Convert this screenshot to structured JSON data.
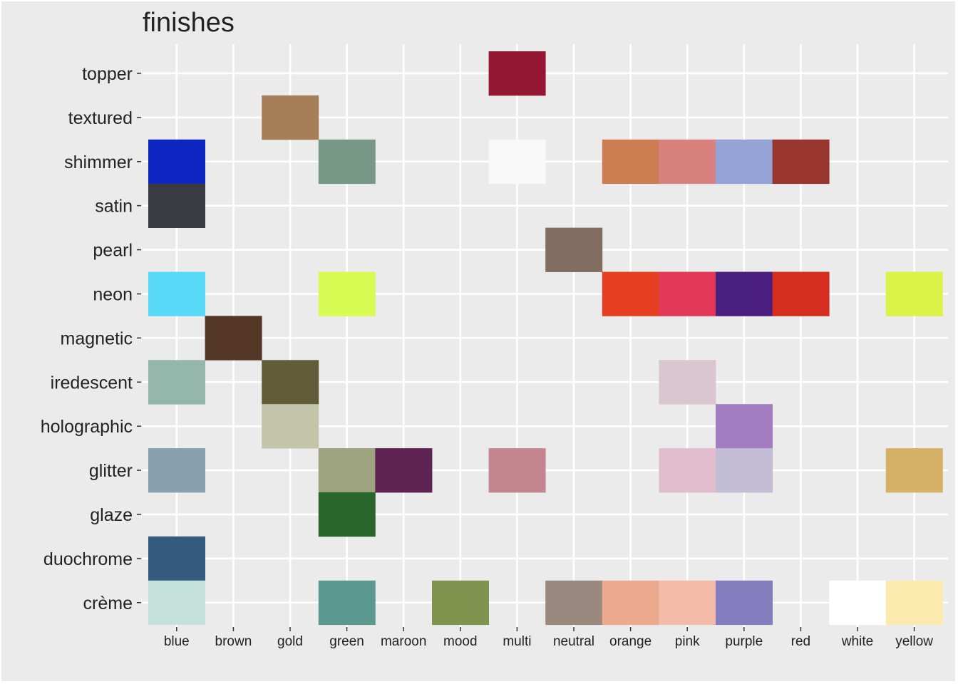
{
  "chart_data": {
    "type": "heatmap",
    "title": "finishes",
    "xlabel": "",
    "ylabel": "",
    "grid": true,
    "legend": "none",
    "x_categories": [
      "blue",
      "brown",
      "gold",
      "green",
      "maroon",
      "mood",
      "multi",
      "neutral",
      "orange",
      "pink",
      "purple",
      "red",
      "white",
      "yellow"
    ],
    "y_categories": [
      "topper",
      "textured",
      "shimmer",
      "satin",
      "pearl",
      "neon",
      "magnetic",
      "iredescent",
      "holographic",
      "glitter",
      "glaze",
      "duochrome",
      "crème"
    ],
    "cells": [
      {
        "x": "multi",
        "y": "topper",
        "color": "#941832"
      },
      {
        "x": "gold",
        "y": "textured",
        "color": "#a67e58"
      },
      {
        "x": "blue",
        "y": "shimmer",
        "color": "#0c25c1"
      },
      {
        "x": "green",
        "y": "shimmer",
        "color": "#779787"
      },
      {
        "x": "multi",
        "y": "shimmer",
        "color": "#f7f8f7"
      },
      {
        "x": "orange",
        "y": "shimmer",
        "color": "#cc7e52"
      },
      {
        "x": "pink",
        "y": "shimmer",
        "color": "#d8817e"
      },
      {
        "x": "purple",
        "y": "shimmer",
        "color": "#95a2d6"
      },
      {
        "x": "red",
        "y": "shimmer",
        "color": "#98352e"
      },
      {
        "x": "blue",
        "y": "satin",
        "color": "#393a42"
      },
      {
        "x": "neutral",
        "y": "pearl",
        "color": "#826d61"
      },
      {
        "x": "blue",
        "y": "neon",
        "color": "#58d9f7"
      },
      {
        "x": "green",
        "y": "neon",
        "color": "#d8fb54"
      },
      {
        "x": "orange",
        "y": "neon",
        "color": "#e53e21"
      },
      {
        "x": "pink",
        "y": "neon",
        "color": "#e33958"
      },
      {
        "x": "purple",
        "y": "neon",
        "color": "#4b1f7f"
      },
      {
        "x": "red",
        "y": "neon",
        "color": "#d52d20"
      },
      {
        "x": "yellow",
        "y": "neon",
        "color": "#dbf346"
      },
      {
        "x": "brown",
        "y": "magnetic",
        "color": "#553728"
      },
      {
        "x": "blue",
        "y": "iredescent",
        "color": "#94b6ab"
      },
      {
        "x": "gold",
        "y": "iredescent",
        "color": "#5f5c37"
      },
      {
        "x": "pink",
        "y": "iredescent",
        "color": "#d9c6ce"
      },
      {
        "x": "gold",
        "y": "holographic",
        "color": "#c3c5ab"
      },
      {
        "x": "purple",
        "y": "holographic",
        "color": "#a37dc1"
      },
      {
        "x": "blue",
        "y": "glitter",
        "color": "#89a0b1"
      },
      {
        "x": "green",
        "y": "glitter",
        "color": "#9da37e"
      },
      {
        "x": "maroon",
        "y": "glitter",
        "color": "#5e2353"
      },
      {
        "x": "multi",
        "y": "glitter",
        "color": "#c38691"
      },
      {
        "x": "pink",
        "y": "glitter",
        "color": "#e1bdcd"
      },
      {
        "x": "purple",
        "y": "glitter",
        "color": "#c2bdd4"
      },
      {
        "x": "yellow",
        "y": "glitter",
        "color": "#d6b064"
      },
      {
        "x": "green",
        "y": "glaze",
        "color": "#29662b"
      },
      {
        "x": "blue",
        "y": "duochrome",
        "color": "#345a7d"
      },
      {
        "x": "blue",
        "y": "crème",
        "color": "#c5e1dc"
      },
      {
        "x": "green",
        "y": "crème",
        "color": "#5b9990"
      },
      {
        "x": "mood",
        "y": "crème",
        "color": "#80944f"
      },
      {
        "x": "neutral",
        "y": "crème",
        "color": "#9b8980"
      },
      {
        "x": "orange",
        "y": "crème",
        "color": "#eca98e"
      },
      {
        "x": "pink",
        "y": "crème",
        "color": "#f4bca8"
      },
      {
        "x": "purple",
        "y": "crème",
        "color": "#857dbe"
      },
      {
        "x": "white",
        "y": "crème",
        "color": "#ffffff"
      },
      {
        "x": "yellow",
        "y": "crème",
        "color": "#fce9ae"
      }
    ]
  }
}
